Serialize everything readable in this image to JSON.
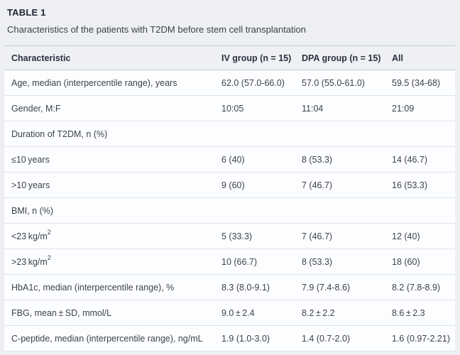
{
  "table": {
    "label": "TABLE 1",
    "caption": "Characteristics of the patients with T2DM before stem cell transplantation",
    "columns": {
      "characteristic": "Characteristic",
      "iv": "IV group (n = 15)",
      "dpa": "DPA group (n = 15)",
      "all": "All"
    },
    "rows": [
      {
        "label": "Age, median (interpercentile range), years",
        "sup": "",
        "iv": "62.0 (57.0-66.0)",
        "dpa": "57.0 (55.0-61.0)",
        "all": "59.5 (34-68)"
      },
      {
        "label": "Gender, M:F",
        "sup": "",
        "iv": "10:05",
        "dpa": "11:04",
        "all": "21:09"
      },
      {
        "label": "Duration of T2DM, n (%)",
        "sup": "",
        "iv": "",
        "dpa": "",
        "all": ""
      },
      {
        "label": "≤10 years",
        "sup": "",
        "iv": "6 (40)",
        "dpa": "8 (53.3)",
        "all": "14 (46.7)"
      },
      {
        "label": ">10 years",
        "sup": "",
        "iv": "9 (60)",
        "dpa": "7 (46.7)",
        "all": "16 (53.3)"
      },
      {
        "label": "BMI, n (%)",
        "sup": "",
        "iv": "",
        "dpa": "",
        "all": ""
      },
      {
        "label": "<23 kg/m",
        "sup": "2",
        "iv": "5 (33.3)",
        "dpa": "7 (46.7)",
        "all": "12 (40)"
      },
      {
        "label": ">23 kg/m",
        "sup": "2",
        "iv": "10 (66.7)",
        "dpa": "8 (53.3)",
        "all": "18 (60)"
      },
      {
        "label": "HbA1c, median (interpercentile range), %",
        "sup": "",
        "iv": "8.3 (8.0-9.1)",
        "dpa": "7.9 (7.4-8.6)",
        "all": "8.2 (7.8-8.9)"
      },
      {
        "label": "FBG, mean ± SD, mmol/L",
        "sup": "",
        "iv": "9.0 ± 2.4",
        "dpa": "8.2 ± 2.2",
        "all": "8.6 ± 2.3"
      },
      {
        "label": "C-peptide, median (interpercentile range), ng/mL",
        "sup": "",
        "iv": "1.9 (1.0-3.0)",
        "dpa": "1.4 (0.7-2.0)",
        "all": "1.6 (0.97-2.21)"
      }
    ]
  }
}
